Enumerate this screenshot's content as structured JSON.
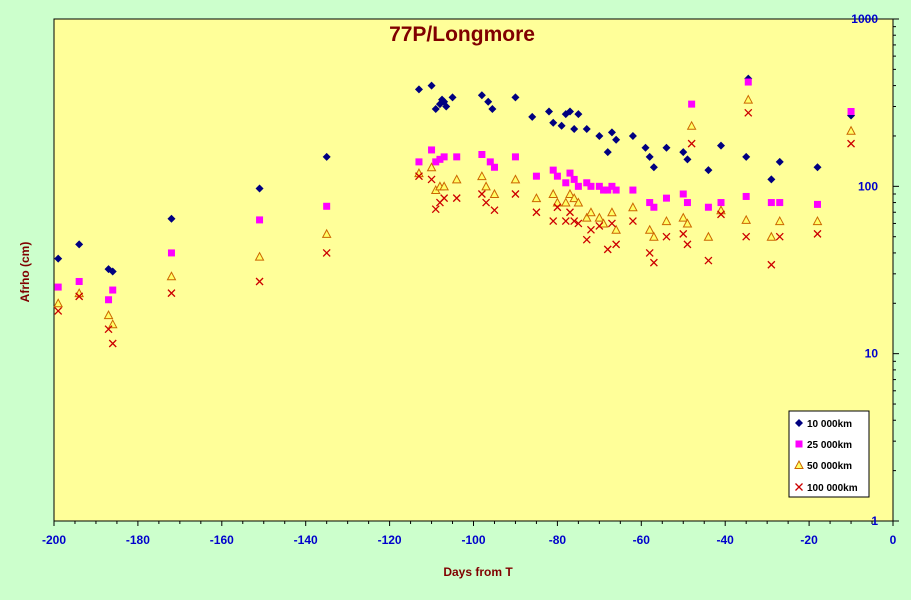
{
  "chart_data": {
    "type": "scatter",
    "title": "77P/Longmore",
    "xlabel": "Days from  T",
    "ylabel": "Afrho (cm)",
    "xlim": [
      -200,
      0
    ],
    "ylim": [
      1,
      1000
    ],
    "yscale": "log",
    "grid": false,
    "legend_position": "bottom-right",
    "x_ticks": [
      "-200",
      "-180",
      "-160",
      "-140",
      "-120",
      "-100",
      "-80",
      "-60",
      "-40",
      "-20",
      "0"
    ],
    "y_ticks": [
      "1",
      "10",
      "100",
      "1000"
    ],
    "colors": {
      "plot_background": "#ffff99",
      "figure_background": "#ccffcc",
      "x_tick_labels": "#0000cc",
      "y_tick_labels": "#0000cc",
      "axis_titles": "#800000"
    },
    "series": [
      {
        "name": "10 000km",
        "marker": "diamond",
        "color": "#000080",
        "x": [
          -199,
          -194,
          -187,
          -186,
          -172,
          -151,
          -135,
          -113,
          -110,
          -109,
          -108,
          -107.5,
          -107,
          -106.5,
          -105,
          -98,
          -96.5,
          -95.5,
          -90,
          -86,
          -82,
          -81,
          -79,
          -78,
          -77,
          -76,
          -75,
          -73,
          -70,
          -68,
          -67,
          -66,
          -62,
          -59,
          -58,
          -57,
          -54,
          -50,
          -49,
          -44,
          -41,
          -35,
          -34.5,
          -29,
          -27,
          -18,
          -10
        ],
        "y": [
          37,
          45,
          32,
          31,
          64,
          97,
          150,
          380,
          400,
          290,
          310,
          330,
          320,
          300,
          340,
          350,
          320,
          290,
          340,
          260,
          280,
          240,
          230,
          270,
          280,
          220,
          270,
          220,
          200,
          160,
          210,
          190,
          200,
          170,
          150,
          130,
          170,
          160,
          145,
          125,
          175,
          150,
          440,
          110,
          140,
          130,
          265
        ]
      },
      {
        "name": "25 000km",
        "marker": "square",
        "color": "#ff00ff",
        "x": [
          -199,
          -194,
          -187,
          -186,
          -172,
          -151,
          -135,
          -113,
          -110,
          -109,
          -108,
          -107,
          -104,
          -98,
          -96,
          -95,
          -90,
          -85,
          -81,
          -80,
          -78,
          -77,
          -76,
          -75,
          -73,
          -72,
          -70,
          -69,
          -68,
          -67,
          -66,
          -62,
          -58,
          -57,
          -54,
          -50,
          -49,
          -48,
          -44,
          -41,
          -35,
          -34.5,
          -29,
          -27,
          -18,
          -10
        ],
        "y": [
          25,
          27,
          21,
          24,
          40,
          63,
          76,
          140,
          165,
          140,
          145,
          150,
          150,
          155,
          140,
          130,
          150,
          115,
          125,
          115,
          105,
          120,
          110,
          100,
          105,
          100,
          100,
          95,
          95,
          100,
          95,
          95,
          80,
          75,
          85,
          90,
          80,
          310,
          75,
          80,
          87,
          420,
          80,
          80,
          78,
          280
        ]
      },
      {
        "name": "50 000km",
        "marker": "triangle",
        "color": "#cc6600",
        "x": [
          -199,
          -194,
          -187,
          -186,
          -172,
          -151,
          -135,
          -113,
          -110,
          -109,
          -108,
          -107,
          -104,
          -98,
          -97,
          -95,
          -90,
          -85,
          -81,
          -80,
          -78,
          -77,
          -76,
          -75,
          -73,
          -72,
          -70,
          -69,
          -67,
          -66,
          -62,
          -58,
          -57,
          -54,
          -50,
          -49,
          -48,
          -44,
          -41,
          -35,
          -34.5,
          -29,
          -27,
          -18,
          -10
        ],
        "y": [
          20,
          23,
          17,
          15,
          29,
          38,
          52,
          120,
          130,
          95,
          100,
          100,
          110,
          115,
          100,
          90,
          110,
          85,
          90,
          80,
          80,
          90,
          85,
          80,
          65,
          70,
          65,
          60,
          70,
          55,
          75,
          55,
          50,
          62,
          65,
          60,
          230,
          50,
          72,
          63,
          330,
          50,
          62,
          62,
          215
        ]
      },
      {
        "name": "100 000km",
        "marker": "x",
        "color": "#cc0000",
        "x": [
          -199,
          -194,
          -187,
          -186,
          -172,
          -151,
          -135,
          -113,
          -110,
          -109,
          -108,
          -107,
          -104,
          -98,
          -97,
          -95,
          -90,
          -85,
          -81,
          -80,
          -78,
          -77,
          -76,
          -75,
          -73,
          -72,
          -70,
          -68,
          -67,
          -66,
          -62,
          -58,
          -57,
          -54,
          -50,
          -49,
          -48,
          -44,
          -41,
          -35,
          -34.5,
          -29,
          -27,
          -18,
          -10
        ],
        "y": [
          18,
          22,
          14,
          11.5,
          23,
          27,
          40,
          115,
          110,
          73,
          80,
          85,
          85,
          90,
          80,
          72,
          90,
          70,
          62,
          75,
          62,
          70,
          62,
          60,
          48,
          55,
          58,
          42,
          60,
          45,
          62,
          40,
          35,
          50,
          52,
          45,
          180,
          36,
          68,
          50,
          275,
          34,
          50,
          52,
          180
        ]
      }
    ]
  }
}
